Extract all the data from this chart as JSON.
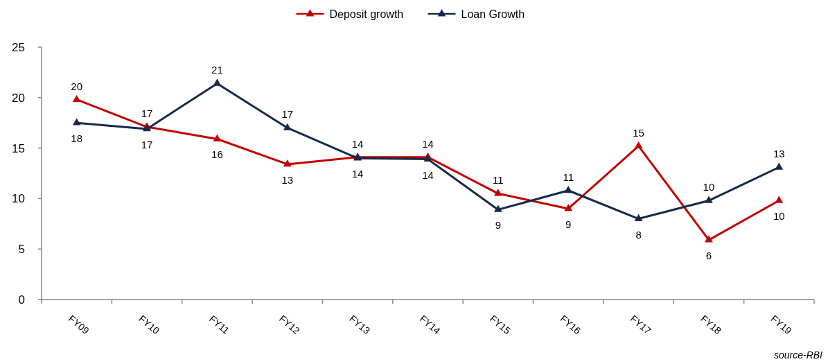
{
  "chart_data": {
    "type": "line",
    "categories": [
      "FY09",
      "FY10",
      "FY11",
      "FY12",
      "FY13",
      "FY14",
      "FY15",
      "FY16",
      "FY17",
      "FY18",
      "FY19"
    ],
    "series": [
      {
        "name": "Deposit growth",
        "color": "#c00000",
        "values": [
          19.8,
          17.1,
          15.9,
          13.4,
          14.1,
          14.1,
          10.5,
          9.0,
          15.2,
          5.9,
          9.8
        ],
        "value_labels": [
          "20",
          "17",
          "16",
          "13",
          "14",
          "14",
          "11",
          "9",
          "15",
          "6",
          "10"
        ]
      },
      {
        "name": "Loan Growth",
        "color": "#17294a",
        "values": [
          17.5,
          16.9,
          21.4,
          17.0,
          14.0,
          13.9,
          8.9,
          10.8,
          8.0,
          9.8,
          13.1
        ],
        "value_labels": [
          "18",
          "17",
          "21",
          "17",
          "14",
          "14",
          "9",
          "11",
          "8",
          "10",
          "13"
        ]
      }
    ],
    "ylim": [
      0,
      25
    ],
    "yticks": [
      0,
      5,
      10,
      15,
      20,
      25
    ],
    "marker": "triangle",
    "line_style": "solid",
    "grid": false,
    "legend": "top",
    "annotations": [
      "source-RBI"
    ]
  }
}
